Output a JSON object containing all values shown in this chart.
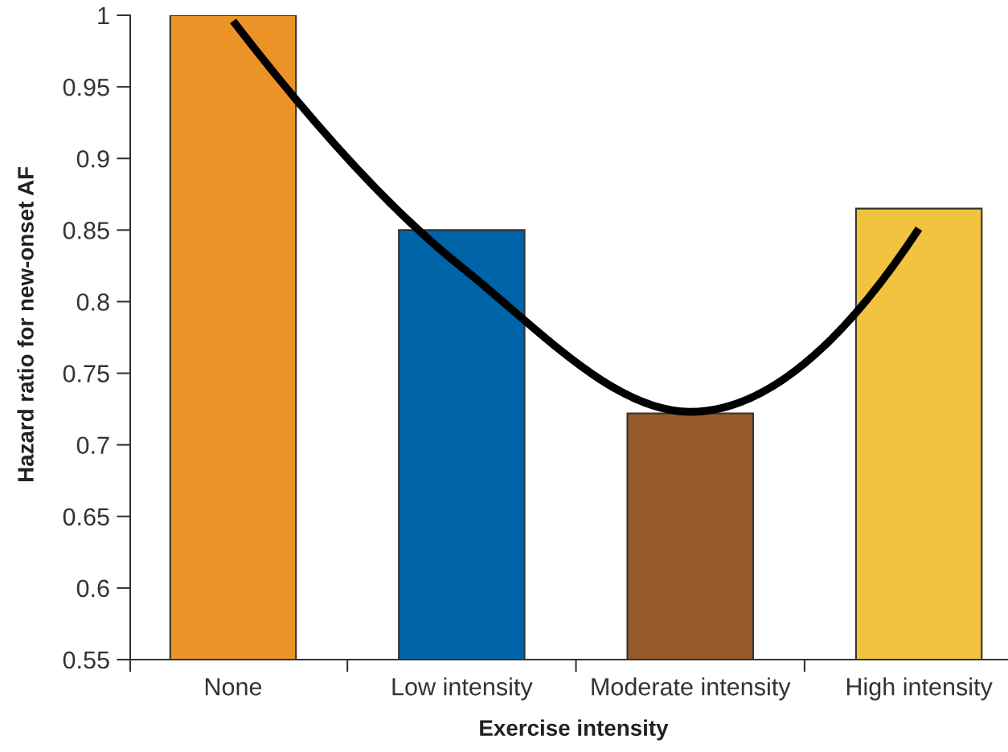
{
  "chart_data": {
    "type": "bar",
    "xlabel": "Exercise intensity",
    "ylabel": "Hazard ratio for new-onset AF",
    "categories": [
      "None",
      "Low intensity",
      "Moderate intensity",
      "High intensity"
    ],
    "series": [
      {
        "colors": [
          "#ec9327",
          "#0064a8",
          "#965a28",
          "#f1c33f"
        ],
        "values": [
          1,
          0.85,
          0.722,
          0.865
        ]
      },
      {
        "type": "line",
        "color": "#000000",
        "marker": "none",
        "line_style": "solid",
        "values": [
          0.996,
          0.824,
          0.723,
          0.851
        ]
      }
    ],
    "ylim": [
      0.55,
      1
    ],
    "yticks": [
      0.55,
      0.6,
      0.65,
      0.7,
      0.75,
      0.8,
      0.85,
      0.9,
      0.95,
      1
    ]
  }
}
